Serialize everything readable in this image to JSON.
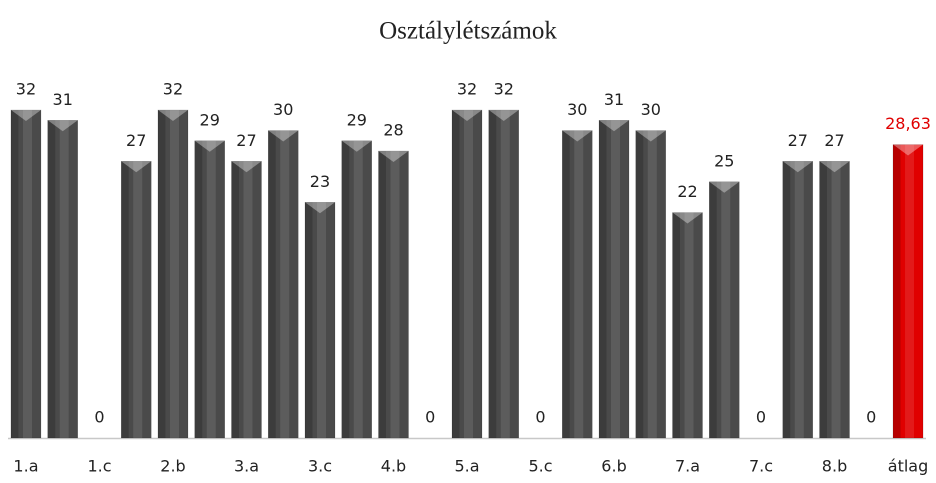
{
  "chart_data": {
    "type": "bar",
    "title": "Osztálylétszámok",
    "categories": [
      "1.a",
      null,
      "1.c",
      null,
      "2.b",
      null,
      "3.a",
      null,
      "3.c",
      null,
      "4.b",
      null,
      "5.a",
      null,
      "5.c",
      null,
      "6.b",
      null,
      "7.a",
      null,
      "7.c",
      null,
      "8.b",
      null,
      "átlag"
    ],
    "values": [
      32,
      31,
      0,
      27,
      32,
      29,
      27,
      30,
      23,
      29,
      28,
      0,
      32,
      32,
      0,
      30,
      31,
      30,
      22,
      25,
      0,
      27,
      27,
      0,
      28.63
    ],
    "value_labels": [
      "32",
      "31",
      "0",
      "27",
      "32",
      "29",
      "27",
      "30",
      "23",
      "29",
      "28",
      "0",
      "32",
      "32",
      "0",
      "30",
      "31",
      "30",
      "22",
      "25",
      "0",
      "27",
      "27",
      "0",
      "28,63"
    ],
    "colors": [
      "#4a4a4a",
      "#4a4a4a",
      "#4a4a4a",
      "#4a4a4a",
      "#4a4a4a",
      "#4a4a4a",
      "#4a4a4a",
      "#4a4a4a",
      "#4a4a4a",
      "#4a4a4a",
      "#4a4a4a",
      "#4a4a4a",
      "#4a4a4a",
      "#4a4a4a",
      "#4a4a4a",
      "#4a4a4a",
      "#4a4a4a",
      "#4a4a4a",
      "#4a4a4a",
      "#4a4a4a",
      "#4a4a4a",
      "#4a4a4a",
      "#4a4a4a",
      "#4a4a4a",
      "#e00000"
    ],
    "ylim": [
      0,
      35
    ]
  }
}
